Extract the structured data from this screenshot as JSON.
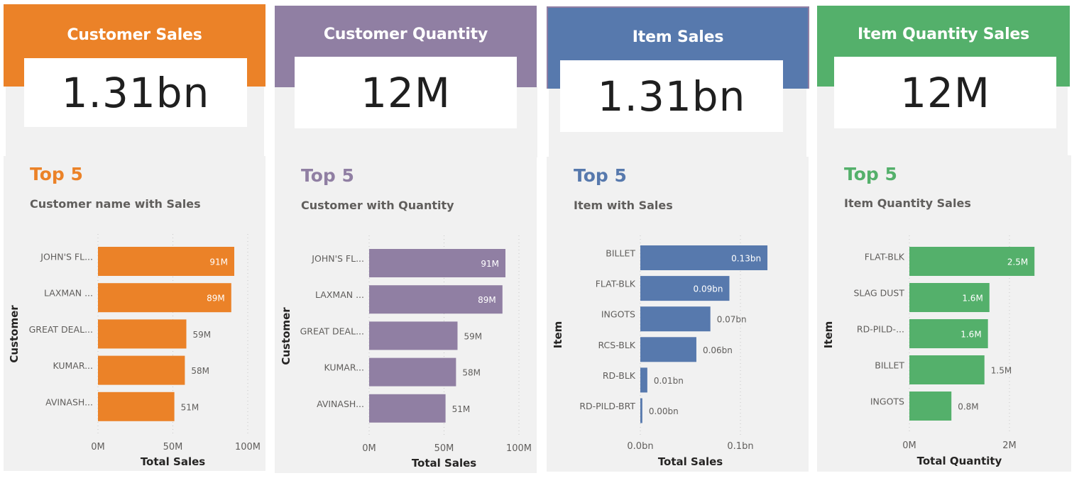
{
  "dashboard": {
    "cards": [
      {
        "id": "customer-sales",
        "header_title": "Customer Sales",
        "kpi_value": "1.31bn",
        "top_title": "Top 5",
        "subtitle": "Customer name with Sales",
        "accent_color": "#eb8228"
      },
      {
        "id": "customer-quantity",
        "header_title": "Customer Quantity",
        "kpi_value": "12M",
        "top_title": "Top 5",
        "subtitle": "Customer with Quantity",
        "accent_color": "#907fa3"
      },
      {
        "id": "item-sales",
        "header_title": "Item Sales",
        "kpi_value": "1.31bn",
        "top_title": "Top 5",
        "subtitle": "Item with Sales",
        "accent_color": "#5779ad",
        "header_border_color": "#907fa3"
      },
      {
        "id": "item-quantity-sales",
        "header_title": "Item Quantity Sales",
        "kpi_value": "12M",
        "top_title": "Top 5",
        "subtitle": "Item Quantity Sales",
        "accent_color": "#54b06b"
      }
    ]
  },
  "chart_data": [
    {
      "type": "bar",
      "orientation": "horizontal",
      "title": "Customer name with Sales",
      "categories": [
        "JOHN'S FL...",
        "LAXMAN ...",
        "GREAT DEAL...",
        "KUMAR...",
        "AVINASH..."
      ],
      "values": [
        91,
        89,
        59,
        58,
        51
      ],
      "data_labels": [
        "91M",
        "89M",
        "59M",
        "58M",
        "51M"
      ],
      "unit": "M",
      "xlabel": "Total Sales",
      "ylabel": "Customer",
      "xlim": [
        0,
        100
      ],
      "xticks": [
        0,
        50,
        100
      ],
      "xtick_labels": [
        "0M",
        "50M",
        "100M"
      ],
      "grid": true,
      "color": "#eb8228"
    },
    {
      "type": "bar",
      "orientation": "horizontal",
      "title": "Customer with Quantity",
      "categories": [
        "JOHN'S FL...",
        "LAXMAN ...",
        "GREAT DEAL...",
        "KUMAR...",
        "AVINASH..."
      ],
      "values": [
        91,
        89,
        59,
        58,
        51
      ],
      "data_labels": [
        "91M",
        "89M",
        "59M",
        "58M",
        "51M"
      ],
      "unit": "M",
      "xlabel": "Total Sales",
      "ylabel": "Customer",
      "xlim": [
        0,
        100
      ],
      "xticks": [
        0,
        50,
        100
      ],
      "xtick_labels": [
        "0M",
        "50M",
        "100M"
      ],
      "grid": true,
      "color": "#907fa3"
    },
    {
      "type": "bar",
      "orientation": "horizontal",
      "title": "Item with Sales",
      "categories": [
        "BILLET",
        "FLAT-BLK",
        "INGOTS",
        "RCS-BLK",
        "RD-BLK",
        "RD-PILD-BRT"
      ],
      "values": [
        0.127,
        0.089,
        0.07,
        0.056,
        0.007,
        0.002
      ],
      "data_labels": [
        "0.13bn",
        "0.09bn",
        "0.07bn",
        "0.06bn",
        "0.01bn",
        "0.00bn"
      ],
      "unit": "bn",
      "xlabel": "Total Sales",
      "ylabel": "Item",
      "xlim": [
        0,
        0.15
      ],
      "xticks": [
        0,
        0.1
      ],
      "xtick_labels": [
        "0.0bn",
        "0.1bn"
      ],
      "grid": true,
      "color": "#5779ad"
    },
    {
      "type": "bar",
      "orientation": "horizontal",
      "title": "Item Quantity Sales",
      "categories": [
        "FLAT-BLK",
        "SLAG DUST",
        "RD-PILD-...",
        "BILLET",
        "INGOTS"
      ],
      "values": [
        2.5,
        1.6,
        1.57,
        1.5,
        0.84
      ],
      "data_labels": [
        "2.5M",
        "1.6M",
        "1.6M",
        "1.5M",
        "0.8M"
      ],
      "unit": "M",
      "xlabel": "Total Quantity",
      "ylabel": "Item",
      "xlim": [
        0,
        3
      ],
      "xticks": [
        0,
        2
      ],
      "xtick_labels": [
        "0M",
        "2M"
      ],
      "grid": true,
      "color": "#54b06b"
    }
  ]
}
